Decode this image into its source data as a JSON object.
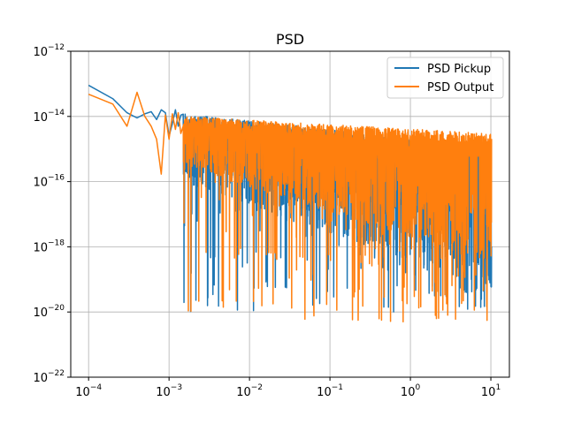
{
  "chart_data": {
    "type": "line",
    "title": "PSD",
    "xlabel": "",
    "ylabel": "",
    "xscale": "log",
    "yscale": "log",
    "xlim": [
      6e-05,
      17
    ],
    "ylim": [
      1e-22,
      1e-12
    ],
    "grid": true,
    "legend": {
      "position": "top-right",
      "entries": [
        "PSD Pickup",
        "PSD Output"
      ]
    },
    "xticks": [
      {
        "value": 0.0001,
        "base": "10",
        "exp": "−4"
      },
      {
        "value": 0.001,
        "base": "10",
        "exp": "−3"
      },
      {
        "value": 0.01,
        "base": "10",
        "exp": "−2"
      },
      {
        "value": 0.1,
        "base": "10",
        "exp": "−1"
      },
      {
        "value": 1,
        "base": "10",
        "exp": "0"
      },
      {
        "value": 10,
        "base": "10",
        "exp": "1"
      }
    ],
    "yticks": [
      {
        "value": 1e-22,
        "base": "10",
        "exp": "−22"
      },
      {
        "value": 1e-20,
        "base": "10",
        "exp": "−20"
      },
      {
        "value": 1e-18,
        "base": "10",
        "exp": "−18"
      },
      {
        "value": 1e-16,
        "base": "10",
        "exp": "−16"
      },
      {
        "value": 1e-14,
        "base": "10",
        "exp": "−14"
      },
      {
        "value": 1e-12,
        "base": "10",
        "exp": "−12"
      }
    ],
    "series": [
      {
        "name": "PSD Pickup",
        "color": "#1f77b4",
        "x": [
          0.0001,
          0.0002,
          0.0003,
          0.0004,
          0.0005,
          0.0006,
          0.0007,
          0.0008,
          0.0009,
          0.001,
          0.0011,
          0.0012,
          0.0013,
          0.0014
        ],
        "y": [
          9e-14,
          3.5e-14,
          1.3e-14,
          9e-15,
          1.2e-14,
          1.4e-14,
          8e-15,
          1.6e-14,
          1.3e-14,
          2.5e-15,
          6e-15,
          1.6e-14,
          5e-15,
          1.1e-14
        ],
        "noise": {
          "x_start": 0.0015,
          "x_end": 10.2,
          "points": 2400,
          "upper_at_start": 1.2e-14,
          "upper_at_end": 1.2e-15,
          "lower_at_start": 1e-16,
          "lower_at_end": 5e-20,
          "floor": 1e-20
        }
      },
      {
        "name": "PSD Output",
        "color": "#ff7f0e",
        "x": [
          0.0001,
          0.0002,
          0.0003,
          0.0004,
          0.0005,
          0.0006,
          0.0007,
          0.0008,
          0.0009,
          0.001,
          0.0011,
          0.0012,
          0.0013,
          0.0014
        ],
        "y": [
          4.8e-14,
          2.4e-14,
          5e-15,
          5.5e-14,
          1e-14,
          5e-15,
          2e-15,
          1.7e-16,
          1.1e-14,
          2e-15,
          1.2e-14,
          4e-15,
          1.3e-14,
          3e-15
        ],
        "noise": {
          "x_start": 0.0015,
          "x_end": 10.2,
          "points": 2400,
          "upper_at_start": 1e-14,
          "upper_at_end": 3e-15,
          "lower_at_start": 3e-16,
          "lower_at_end": 3e-19,
          "floor": 5e-21
        }
      }
    ]
  }
}
